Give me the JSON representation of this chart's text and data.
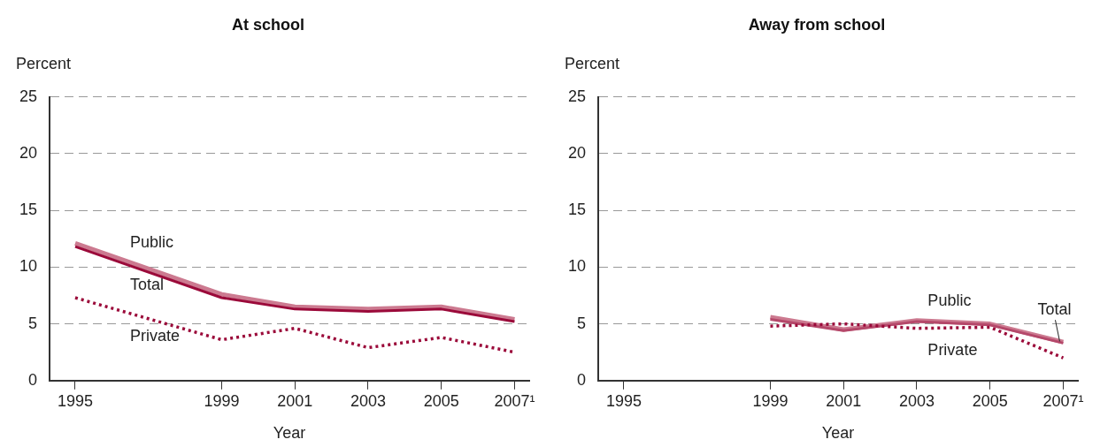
{
  "chart_data": [
    {
      "type": "line",
      "title": "At school",
      "xlabel": "Year",
      "ylabel": "Percent",
      "x": [
        1995,
        1999,
        2001,
        2003,
        2005,
        2007
      ],
      "series": [
        {
          "name": "Public",
          "color": "#cc7a90",
          "values": [
            12.1,
            7.6,
            6.5,
            6.3,
            6.5,
            5.4
          ]
        },
        {
          "name": "Total",
          "color": "#9b0a3a",
          "values": [
            11.8,
            7.3,
            6.3,
            6.1,
            6.3,
            5.2
          ]
        },
        {
          "name": "Private",
          "color": "#9b0a3a",
          "line_style": "dotted",
          "values": [
            7.3,
            3.6,
            4.6,
            2.9,
            3.8,
            2.5
          ]
        }
      ],
      "xlim": [
        1994.3,
        2007.4
      ],
      "xticks": [
        1995,
        1999,
        2001,
        2003,
        2005,
        {
          "value": 2007,
          "label": "2007¹"
        }
      ],
      "ylim": [
        0,
        25
      ],
      "yticks": [
        0,
        5,
        10,
        15,
        20,
        25
      ],
      "grid": "y",
      "legend": false,
      "marker": "none",
      "line_style": "solid"
    },
    {
      "type": "line",
      "title": "Away from school",
      "xlabel": "Year",
      "ylabel": "Percent",
      "x": [
        1999,
        2001,
        2003,
        2005,
        2007
      ],
      "series": [
        {
          "name": "Public",
          "color": "#cc7a90",
          "values": [
            5.6,
            4.5,
            5.3,
            5.0,
            3.4
          ]
        },
        {
          "name": "Total",
          "color": "#b5486a",
          "values": [
            5.4,
            4.4,
            5.2,
            4.9,
            3.3
          ]
        },
        {
          "name": "Private",
          "color": "#9b0a3a",
          "line_style": "dotted",
          "values": [
            4.8,
            5.0,
            4.6,
            4.7,
            2.0
          ]
        }
      ],
      "xlim": [
        1994.3,
        2007.4
      ],
      "xticks": [
        1995,
        1999,
        2001,
        2003,
        2005,
        {
          "value": 2007,
          "label": "2007¹"
        }
      ],
      "ylim": [
        0,
        25
      ],
      "yticks": [
        0,
        5,
        10,
        15,
        20,
        25
      ],
      "grid": "y",
      "legend": false,
      "marker": "none",
      "line_style": "solid"
    }
  ]
}
